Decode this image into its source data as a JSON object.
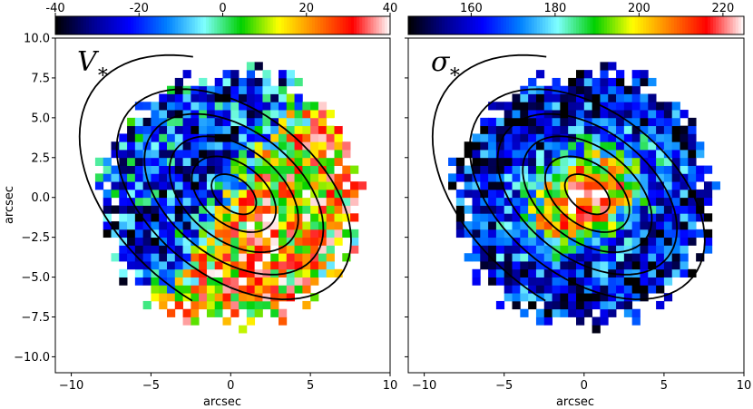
{
  "chart_data": [
    {
      "type": "heatmap",
      "panel_label": "V",
      "panel_subscript": "∗",
      "xlabel": "arcsec",
      "ylabel": "arcsec",
      "xlim": [
        -11,
        10
      ],
      "ylim": [
        -11,
        10
      ],
      "xticks": [
        -10,
        -5,
        0,
        5,
        10
      ],
      "yticks": [
        -10.0,
        -7.5,
        -5.0,
        -2.5,
        0.0,
        2.5,
        5.0,
        7.5,
        10.0
      ],
      "colorbar": {
        "min": -40,
        "max": 40,
        "ticks": [
          -40,
          -20,
          0,
          20,
          40
        ],
        "colormap": "jet-like"
      },
      "field_pattern": "rotation",
      "velocity_amplitude": 35
    },
    {
      "type": "heatmap",
      "panel_label": "σ",
      "panel_subscript": "∗",
      "xlabel": "arcsec",
      "ylabel": "",
      "xlim": [
        -11,
        10
      ],
      "ylim": [
        -11,
        10
      ],
      "xticks": [
        -10,
        -5,
        0,
        5,
        10
      ],
      "yticks": [
        -10.0,
        -7.5,
        -5.0,
        -2.5,
        0.0,
        2.5,
        5.0,
        7.5,
        10.0
      ],
      "colorbar": {
        "min": 145,
        "max": 225,
        "ticks": [
          160,
          180,
          200,
          220
        ],
        "colormap": "jet-like"
      },
      "field_pattern": "dispersion",
      "central_value": 222
    }
  ],
  "colormap_stops": [
    "#000000",
    "#00008f",
    "#0000ff",
    "#0080ff",
    "#7fffff",
    "#00d000",
    "#ffff00",
    "#ff8000",
    "#ff0000",
    "#ffffff"
  ]
}
